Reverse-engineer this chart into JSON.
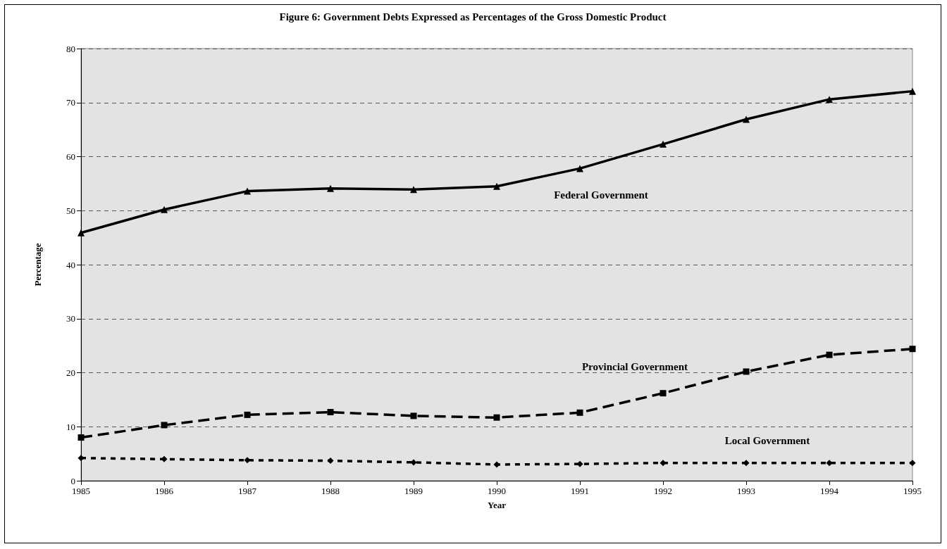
{
  "chart_data": {
    "type": "line",
    "title": "Figure 6: Government Debts Expressed as Percentages of the Gross Domestic Product",
    "xlabel": "Year",
    "ylabel": "Percentage",
    "categories": [
      "1985",
      "1986",
      "1987",
      "1988",
      "1989",
      "1990",
      "1991",
      "1992",
      "1993",
      "1994",
      "1995"
    ],
    "series": [
      {
        "name": "Federal Government",
        "color": "#000000",
        "marker": "triangle",
        "line_style": "solid",
        "values": [
          45.9,
          50.2,
          53.6,
          54.1,
          53.9,
          54.5,
          57.8,
          62.3,
          66.9,
          70.6,
          72.1
        ]
      },
      {
        "name": "Provincial Government",
        "color": "#000000",
        "marker": "square",
        "line_style": "dashed",
        "values": [
          8.0,
          10.3,
          12.2,
          12.7,
          12.0,
          11.7,
          12.6,
          16.2,
          20.2,
          23.3,
          24.4
        ]
      },
      {
        "name": "Local Government",
        "color": "#000000",
        "marker": "diamond",
        "line_style": "dotted",
        "values": [
          4.2,
          4.0,
          3.8,
          3.7,
          3.4,
          3.0,
          3.1,
          3.3,
          3.3,
          3.3,
          3.3
        ]
      }
    ],
    "ylim": [
      0,
      80
    ],
    "yticks": [
      0,
      10,
      20,
      30,
      40,
      50,
      60,
      70,
      80
    ],
    "grid": "y",
    "legend": false
  }
}
